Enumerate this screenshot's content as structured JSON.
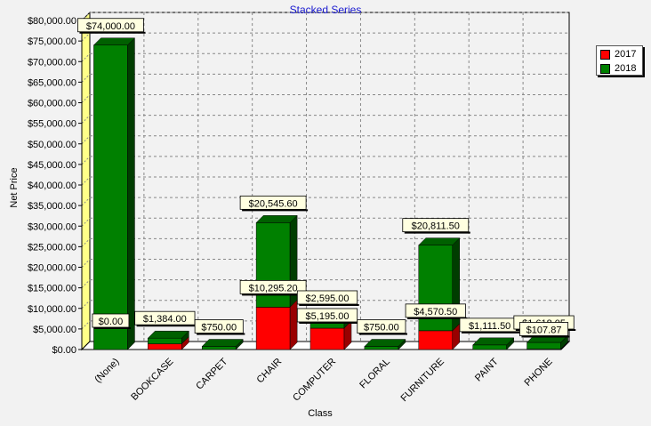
{
  "chart_data": {
    "type": "bar",
    "stacked": true,
    "title": "Stacked Series",
    "xlabel": "Class",
    "ylabel": "Net Price",
    "categories": [
      "(None)",
      "BOOKCASE",
      "CARPET",
      "CHAIR",
      "COMPUTER",
      "FLORAL",
      "FURNITURE",
      "PAINT",
      "PHONE"
    ],
    "series": [
      {
        "name": "2017",
        "color": "#ff0000",
        "side_color": "#990000",
        "values": [
          0,
          1384,
          0,
          10295.2,
          5195,
          0,
          4570.5,
          0,
          107.87
        ],
        "labels": [
          "$0.00",
          "",
          "",
          "$10,295.20",
          "$5,195.00",
          "",
          "$4,570.50",
          "",
          "$107.87"
        ]
      },
      {
        "name": "2018",
        "color": "#008000",
        "side_color": "#003d00",
        "values": [
          74000,
          1384,
          750,
          20545.6,
          2595,
          750,
          20811.5,
          1111.5,
          1618.05
        ],
        "labels": [
          "$74,000.00",
          "$1,384.00",
          "$750.00",
          "$20,545.60",
          "$2,595.00",
          "$750.00",
          "$20,811.50",
          "$1,111.50",
          "$1,618.05"
        ]
      }
    ],
    "ylim": [
      0,
      80000
    ],
    "yticks": [
      0,
      5000,
      10000,
      15000,
      20000,
      25000,
      30000,
      35000,
      40000,
      45000,
      50000,
      55000,
      60000,
      65000,
      70000,
      75000,
      80000
    ],
    "ytick_labels": [
      "$0.00",
      "$5,000.00",
      "$10,000.00",
      "$15,000.00",
      "$20,000.00",
      "$25,000.00",
      "$30,000.00",
      "$35,000.00",
      "$40,000.00",
      "$45,000.00",
      "$50,000.00",
      "$55,000.00",
      "$60,000.00",
      "$65,000.00",
      "$70,000.00",
      "$75,000.00",
      "$80,000.00"
    ],
    "grid": true,
    "legend_position": "top-right",
    "wall_color": "#ffff88"
  }
}
